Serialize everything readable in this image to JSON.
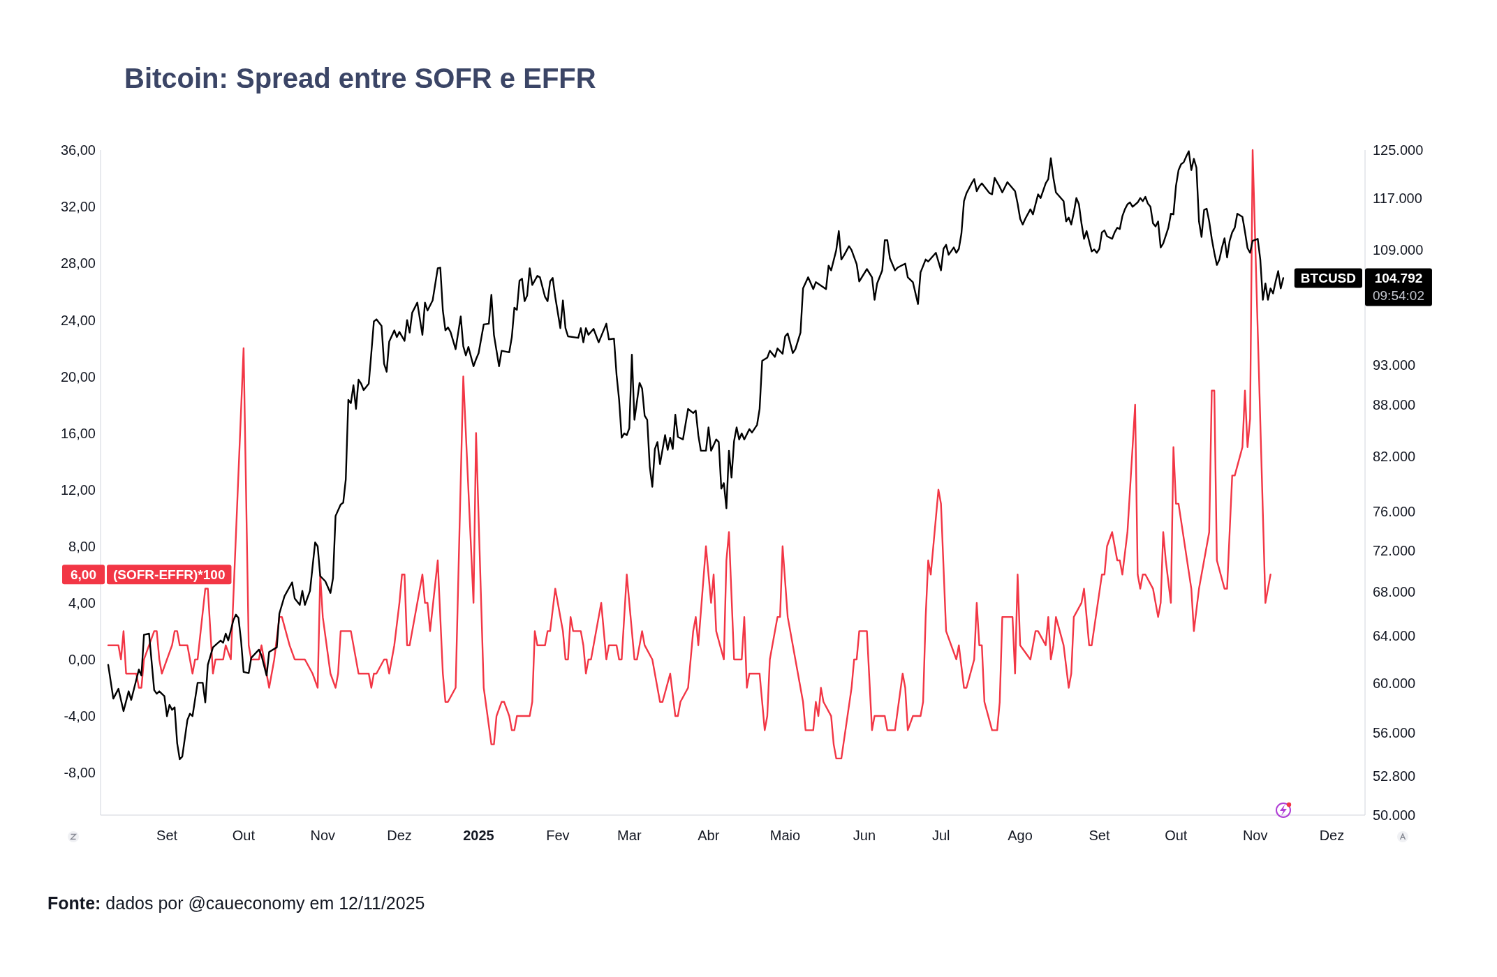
{
  "chart_data": {
    "type": "line",
    "title": "Bitcoin: Spread entre SOFR e EFFR",
    "annotations": [
      "Fonte: dados por @caueconomy em 12/11/2025",
      "09:54:02"
    ],
    "xlim": [
      "2024-08-06",
      "2025-12-14"
    ],
    "xticks": [
      {
        "value": "2024-09-01",
        "label": "Set"
      },
      {
        "value": "2024-10-01",
        "label": "Out"
      },
      {
        "value": "2024-11-01",
        "label": "Nov"
      },
      {
        "value": "2024-12-01",
        "label": "Dez"
      },
      {
        "value": "2025-01-01",
        "label": "2025"
      },
      {
        "value": "2025-02-01",
        "label": "Fev"
      },
      {
        "value": "2025-03-01",
        "label": "Mar"
      },
      {
        "value": "2025-04-01",
        "label": "Abr"
      },
      {
        "value": "2025-05-01",
        "label": "Maio"
      },
      {
        "value": "2025-06-01",
        "label": "Jun"
      },
      {
        "value": "2025-07-01",
        "label": "Jul"
      },
      {
        "value": "2025-08-01",
        "label": "Ago"
      },
      {
        "value": "2025-09-01",
        "label": "Set"
      },
      {
        "value": "2025-10-01",
        "label": "Out"
      },
      {
        "value": "2025-11-01",
        "label": "Nov"
      },
      {
        "value": "2025-12-01",
        "label": "Dez"
      }
    ],
    "ylim": [
      -11,
      36
    ],
    "yticks": [
      {
        "value": -8,
        "label": "-8,00"
      },
      {
        "value": -4,
        "label": "-4,00"
      },
      {
        "value": 0,
        "label": "0,00"
      },
      {
        "value": 4,
        "label": "4,00"
      },
      {
        "value": 6,
        "label": "6,00"
      },
      {
        "value": 8,
        "label": "8,00"
      },
      {
        "value": 12,
        "label": "12,00"
      },
      {
        "value": 16,
        "label": "16,00"
      },
      {
        "value": 20,
        "label": "20,00"
      },
      {
        "value": 24,
        "label": "24,00"
      },
      {
        "value": 28,
        "label": "28,00"
      },
      {
        "value": 32,
        "label": "32,00"
      },
      {
        "value": 36,
        "label": "36,00"
      }
    ],
    "y2lim": [
      50000,
      125000
    ],
    "y2ticks": [
      {
        "value": 50000,
        "label": "50.000"
      },
      {
        "value": 52800,
        "label": "52.800"
      },
      {
        "value": 56000,
        "label": "56.000"
      },
      {
        "value": 60000,
        "label": "60.000"
      },
      {
        "value": 64000,
        "label": "64.000"
      },
      {
        "value": 68000,
        "label": "68.000"
      },
      {
        "value": 72000,
        "label": "72.000"
      },
      {
        "value": 76000,
        "label": "76.000"
      },
      {
        "value": 82000,
        "label": "82.000"
      },
      {
        "value": 88000,
        "label": "88.000"
      },
      {
        "value": 93000,
        "label": "93.000"
      },
      {
        "value": 104792,
        "label": "104.792"
      },
      {
        "value": 109000,
        "label": "109.000"
      },
      {
        "value": 117000,
        "label": "117.000"
      },
      {
        "value": 125000,
        "label": "125.000"
      }
    ],
    "log": "y2",
    "series": [
      {
        "name": "(SOFR-EFFR)*100",
        "color": "#f23645",
        "x": [
          "2024-08-09",
          "2024-08-13",
          "2024-08-14",
          "2024-08-15",
          "2024-08-16",
          "2024-08-20",
          "2024-08-21",
          "2024-08-22",
          "2024-08-23",
          "2024-08-27",
          "2024-08-28",
          "2024-08-29",
          "2024-08-30",
          "2024-09-03",
          "2024-09-04",
          "2024-09-05",
          "2024-09-06",
          "2024-09-09",
          "2024-09-11",
          "2024-09-12",
          "2024-09-13",
          "2024-09-16",
          "2024-09-17",
          "2024-09-19",
          "2024-09-20",
          "2024-09-23",
          "2024-09-24",
          "2024-09-26",
          "2024-10-01",
          "2024-10-03",
          "2024-10-04",
          "2024-10-07",
          "2024-10-08",
          "2024-10-11",
          "2024-10-13",
          "2024-10-15",
          "2024-10-16",
          "2024-10-19",
          "2024-10-21",
          "2024-10-25",
          "2024-10-28",
          "2024-10-30",
          "2024-10-31",
          "2024-11-01",
          "2024-11-04",
          "2024-11-06",
          "2024-11-07",
          "2024-11-08",
          "2024-11-12",
          "2024-11-15",
          "2024-11-19",
          "2024-11-20",
          "2024-11-21",
          "2024-11-22",
          "2024-11-25",
          "2024-11-26",
          "2024-11-27",
          "2024-11-29",
          "2024-12-01",
          "2024-12-02",
          "2024-12-03",
          "2024-12-04",
          "2024-12-05",
          "2024-12-08",
          "2024-12-10",
          "2024-12-11",
          "2024-12-12",
          "2024-12-13",
          "2024-12-16",
          "2024-12-18",
          "2024-12-19",
          "2024-12-20",
          "2024-12-23",
          "2024-12-26",
          "2024-12-30",
          "2024-12-31",
          "2025-01-03",
          "2025-01-06",
          "2025-01-07",
          "2025-01-08",
          "2025-01-10",
          "2025-01-11",
          "2025-01-13",
          "2025-01-14",
          "2025-01-15",
          "2025-01-16",
          "2025-01-21",
          "2025-01-22",
          "2025-01-23",
          "2025-01-24",
          "2025-01-27",
          "2025-01-28",
          "2025-01-29",
          "2025-01-31",
          "2025-02-03",
          "2025-02-04",
          "2025-02-05",
          "2025-02-06",
          "2025-02-07",
          "2025-02-10",
          "2025-02-11",
          "2025-02-12",
          "2025-02-13",
          "2025-02-14",
          "2025-02-18",
          "2025-02-20",
          "2025-02-21",
          "2025-02-24",
          "2025-02-25",
          "2025-02-26",
          "2025-02-28",
          "2025-03-03",
          "2025-03-04",
          "2025-03-06",
          "2025-03-07",
          "2025-03-10",
          "2025-03-13",
          "2025-03-14",
          "2025-03-17",
          "2025-03-19",
          "2025-03-20",
          "2025-03-21",
          "2025-03-24",
          "2025-03-26",
          "2025-03-27",
          "2025-03-28",
          "2025-03-31",
          "2025-04-02",
          "2025-04-03",
          "2025-04-04",
          "2025-04-07",
          "2025-04-08",
          "2025-04-09",
          "2025-04-11",
          "2025-04-14",
          "2025-04-15",
          "2025-04-16",
          "2025-04-17",
          "2025-04-21",
          "2025-04-23",
          "2025-04-24",
          "2025-04-25",
          "2025-04-28",
          "2025-04-29",
          "2025-04-30",
          "2025-05-02",
          "2025-05-06",
          "2025-05-08",
          "2025-05-09",
          "2025-05-12",
          "2025-05-13",
          "2025-05-14",
          "2025-05-15",
          "2025-05-16",
          "2025-05-19",
          "2025-05-20",
          "2025-05-21",
          "2025-05-23",
          "2025-05-27",
          "2025-05-28",
          "2025-05-29",
          "2025-05-30",
          "2025-06-02",
          "2025-06-04",
          "2025-06-05",
          "2025-06-09",
          "2025-06-10",
          "2025-06-13",
          "2025-06-16",
          "2025-06-17",
          "2025-06-18",
          "2025-06-20",
          "2025-06-23",
          "2025-06-24",
          "2025-06-25",
          "2025-06-26",
          "2025-06-27",
          "2025-06-30",
          "2025-07-01",
          "2025-07-03",
          "2025-07-07",
          "2025-07-08",
          "2025-07-10",
          "2025-07-11",
          "2025-07-14",
          "2025-07-15",
          "2025-07-16",
          "2025-07-17",
          "2025-07-18",
          "2025-07-21",
          "2025-07-23",
          "2025-07-24",
          "2025-07-25",
          "2025-07-29",
          "2025-07-30",
          "2025-07-31",
          "2025-08-01",
          "2025-08-05",
          "2025-08-06",
          "2025-08-07",
          "2025-08-08",
          "2025-08-11",
          "2025-08-12",
          "2025-08-13",
          "2025-08-14",
          "2025-08-15",
          "2025-08-18",
          "2025-08-20",
          "2025-08-21",
          "2025-08-22",
          "2025-08-25",
          "2025-08-26",
          "2025-08-28",
          "2025-08-29",
          "2025-09-02",
          "2025-09-03",
          "2025-09-04",
          "2025-09-06",
          "2025-09-08",
          "2025-09-09",
          "2025-09-10",
          "2025-09-12",
          "2025-09-15",
          "2025-09-16",
          "2025-09-17",
          "2025-09-18",
          "2025-09-19",
          "2025-09-22",
          "2025-09-24",
          "2025-09-25",
          "2025-09-26",
          "2025-09-27",
          "2025-09-29",
          "2025-09-30",
          "2025-10-01",
          "2025-10-02",
          "2025-10-07",
          "2025-10-08",
          "2025-10-10",
          "2025-10-14",
          "2025-10-15",
          "2025-10-16",
          "2025-10-17",
          "2025-10-20",
          "2025-10-21",
          "2025-10-23",
          "2025-10-24",
          "2025-10-27",
          "2025-10-28",
          "2025-10-29",
          "2025-10-30",
          "2025-10-31",
          "2025-11-05",
          "2025-11-07"
        ],
        "values": [
          1,
          1,
          0,
          2,
          -1,
          -1,
          -2,
          -2,
          0,
          2,
          2,
          0,
          -1,
          1,
          2,
          2,
          1,
          1,
          -1,
          0,
          0,
          5,
          5,
          -1,
          0,
          0,
          1,
          0,
          22,
          1,
          0,
          0,
          1,
          -2,
          0,
          3,
          3,
          1,
          0,
          0,
          -1,
          -2,
          6,
          3,
          -1,
          -2,
          -1,
          2,
          2,
          -1,
          -1,
          -2,
          -1,
          -1,
          0,
          0,
          -1,
          1,
          4,
          6,
          6,
          1,
          1,
          4,
          6,
          4,
          4,
          2,
          7,
          -1,
          -3,
          -3,
          -2,
          20,
          4,
          16,
          -2,
          -6,
          -6,
          -4,
          -3,
          -3,
          -4,
          -5,
          -5,
          -4,
          -4,
          -3,
          2,
          1,
          1,
          2,
          2,
          5,
          2,
          0,
          0,
          3,
          2,
          2,
          1,
          -1,
          0,
          0,
          4,
          0,
          1,
          1,
          0,
          0,
          6,
          0,
          0,
          2,
          1,
          0,
          -3,
          -3,
          -1,
          -4,
          -4,
          -3,
          -2,
          2,
          3,
          1,
          8,
          4,
          6,
          2,
          0,
          7,
          9,
          0,
          0,
          3,
          -2,
          -1,
          -1,
          -5,
          -4,
          0,
          3,
          3,
          8,
          3,
          -1,
          -3,
          -5,
          -5,
          -3,
          -4,
          -2,
          -3,
          -4,
          -6,
          -7,
          -7,
          -2,
          0,
          0,
          2,
          2,
          -5,
          -4,
          -4,
          -5,
          -5,
          -1,
          -2,
          -5,
          -4,
          -4,
          -3,
          3,
          7,
          6,
          12,
          11,
          2,
          0,
          1,
          -2,
          -2,
          0,
          4,
          1,
          1,
          -3,
          -5,
          -5,
          -3,
          3,
          3,
          -1,
          6,
          1,
          0,
          1,
          2,
          2,
          1,
          3,
          0,
          1,
          3,
          1,
          -2,
          -1,
          3,
          4,
          5,
          1,
          1,
          6,
          6,
          8,
          9,
          7,
          7,
          6,
          9,
          18,
          6,
          5,
          6,
          6,
          5,
          3,
          4,
          9,
          7,
          4,
          15,
          11,
          11,
          5,
          2,
          5,
          9,
          19,
          19,
          7,
          5,
          5,
          13,
          13,
          15,
          19,
          15,
          17,
          36,
          4,
          6
        ]
      },
      {
        "name": "BTCUSD",
        "color": "#000000",
        "axis": "y2",
        "x": [
          "2024-08-09",
          "2024-08-11",
          "2024-08-13",
          "2024-08-15",
          "2024-08-17",
          "2024-08-18",
          "2024-08-21",
          "2024-08-22",
          "2024-08-23",
          "2024-08-25",
          "2024-08-27",
          "2024-08-28",
          "2024-08-29",
          "2024-08-31",
          "2024-09-01",
          "2024-09-02",
          "2024-09-03",
          "2024-09-04",
          "2024-09-05",
          "2024-09-06",
          "2024-09-07",
          "2024-09-09",
          "2024-09-10",
          "2024-09-11",
          "2024-09-13",
          "2024-09-15",
          "2024-09-16",
          "2024-09-17",
          "2024-09-19",
          "2024-09-22",
          "2024-09-23",
          "2024-09-24",
          "2024-09-25",
          "2024-09-27",
          "2024-09-28",
          "2024-09-29",
          "2024-09-30",
          "2024-10-01",
          "2024-10-03",
          "2024-10-04",
          "2024-10-07",
          "2024-10-08",
          "2024-10-10",
          "2024-10-11",
          "2024-10-14",
          "2024-10-15",
          "2024-10-17",
          "2024-10-20",
          "2024-10-21",
          "2024-10-23",
          "2024-10-24",
          "2024-10-25",
          "2024-10-27",
          "2024-10-29",
          "2024-10-30",
          "2024-10-31",
          "2024-11-02",
          "2024-11-04",
          "2024-11-05",
          "2024-11-06",
          "2024-11-08",
          "2024-11-09",
          "2024-11-10",
          "2024-11-11",
          "2024-11-12",
          "2024-11-13",
          "2024-11-14",
          "2024-11-15",
          "2024-11-16",
          "2024-11-17",
          "2024-11-19",
          "2024-11-20",
          "2024-11-21",
          "2024-11-22",
          "2024-11-24",
          "2024-11-25",
          "2024-11-26",
          "2024-11-27",
          "2024-11-29",
          "2024-11-30",
          "2024-12-01",
          "2024-12-03",
          "2024-12-04",
          "2024-12-05",
          "2024-12-06",
          "2024-12-08",
          "2024-12-10",
          "2024-12-11",
          "2024-12-12",
          "2024-12-14",
          "2024-12-16",
          "2024-12-17",
          "2024-12-18",
          "2024-12-19",
          "2024-12-20",
          "2024-12-21",
          "2024-12-23",
          "2024-12-25",
          "2024-12-26",
          "2024-12-27",
          "2024-12-28",
          "2024-12-30",
          "2024-12-31",
          "2025-01-01",
          "2025-01-03",
          "2025-01-05",
          "2025-01-06",
          "2025-01-07",
          "2025-01-09",
          "2025-01-10",
          "2025-01-13",
          "2025-01-14",
          "2025-01-15",
          "2025-01-16",
          "2025-01-17",
          "2025-01-18",
          "2025-01-19",
          "2025-01-20",
          "2025-01-21",
          "2025-01-22",
          "2025-01-24",
          "2025-01-25",
          "2025-01-27",
          "2025-01-28",
          "2025-01-29",
          "2025-01-30",
          "2025-01-31",
          "2025-02-02",
          "2025-02-03",
          "2025-02-04",
          "2025-02-05",
          "2025-02-09",
          "2025-02-10",
          "2025-02-11",
          "2025-02-12",
          "2025-02-13",
          "2025-02-15",
          "2025-02-17",
          "2025-02-20",
          "2025-02-21",
          "2025-02-23",
          "2025-02-24",
          "2025-02-25",
          "2025-02-26",
          "2025-02-27",
          "2025-02-28",
          "2025-03-01",
          "2025-03-02",
          "2025-03-03",
          "2025-03-05",
          "2025-03-06",
          "2025-03-07",
          "2025-03-08",
          "2025-03-09",
          "2025-03-10",
          "2025-03-11",
          "2025-03-12",
          "2025-03-13",
          "2025-03-15",
          "2025-03-16",
          "2025-03-17",
          "2025-03-18",
          "2025-03-19",
          "2025-03-20",
          "2025-03-22",
          "2025-03-24",
          "2025-03-26",
          "2025-03-27",
          "2025-03-28",
          "2025-03-29",
          "2025-03-31",
          "2025-04-01",
          "2025-04-02",
          "2025-04-04",
          "2025-04-05",
          "2025-04-06",
          "2025-04-07",
          "2025-04-08",
          "2025-04-09",
          "2025-04-10",
          "2025-04-11",
          "2025-04-12",
          "2025-04-13",
          "2025-04-14",
          "2025-04-15",
          "2025-04-17",
          "2025-04-18",
          "2025-04-20",
          "2025-04-21",
          "2025-04-22",
          "2025-04-24",
          "2025-04-25",
          "2025-04-27",
          "2025-04-28",
          "2025-04-30",
          "2025-05-01",
          "2025-05-02",
          "2025-05-04",
          "2025-05-05",
          "2025-05-07",
          "2025-05-08",
          "2025-05-10",
          "2025-05-12",
          "2025-05-13",
          "2025-05-17",
          "2025-05-18",
          "2025-05-19",
          "2025-05-21",
          "2025-05-22",
          "2025-05-23",
          "2025-05-24",
          "2025-05-26",
          "2025-05-27",
          "2025-05-29",
          "2025-05-30",
          "2025-06-02",
          "2025-06-04",
          "2025-06-05",
          "2025-06-06",
          "2025-06-08",
          "2025-06-09",
          "2025-06-10",
          "2025-06-11",
          "2025-06-13",
          "2025-06-14",
          "2025-06-17",
          "2025-06-18",
          "2025-06-20",
          "2025-06-22",
          "2025-06-23",
          "2025-06-25",
          "2025-06-26",
          "2025-06-29",
          "2025-06-30",
          "2025-07-01",
          "2025-07-02",
          "2025-07-03",
          "2025-07-04",
          "2025-07-06",
          "2025-07-07",
          "2025-07-08",
          "2025-07-09",
          "2025-07-10",
          "2025-07-11",
          "2025-07-13",
          "2025-07-14",
          "2025-07-15",
          "2025-07-16",
          "2025-07-17",
          "2025-07-20",
          "2025-07-21",
          "2025-07-22",
          "2025-07-24",
          "2025-07-25",
          "2025-07-27",
          "2025-07-30",
          "2025-07-31",
          "2025-08-01",
          "2025-08-02",
          "2025-08-03",
          "2025-08-05",
          "2025-08-06",
          "2025-08-08",
          "2025-08-09",
          "2025-08-11",
          "2025-08-12",
          "2025-08-13",
          "2025-08-14",
          "2025-08-15",
          "2025-08-18",
          "2025-08-19",
          "2025-08-20",
          "2025-08-21",
          "2025-08-22",
          "2025-08-23",
          "2025-08-24",
          "2025-08-25",
          "2025-08-26",
          "2025-08-27",
          "2025-08-29",
          "2025-08-30",
          "2025-08-31",
          "2025-09-01",
          "2025-09-02",
          "2025-09-03",
          "2025-09-04",
          "2025-09-06",
          "2025-09-07",
          "2025-09-08",
          "2025-09-09",
          "2025-09-10",
          "2025-09-11",
          "2025-09-12",
          "2025-09-13",
          "2025-09-14",
          "2025-09-16",
          "2025-09-17",
          "2025-09-18",
          "2025-09-19",
          "2025-09-20",
          "2025-09-21",
          "2025-09-22",
          "2025-09-23",
          "2025-09-24",
          "2025-09-25",
          "2025-09-26",
          "2025-09-28",
          "2025-09-29",
          "2025-09-30",
          "2025-10-01",
          "2025-10-02",
          "2025-10-03",
          "2025-10-04",
          "2025-10-05",
          "2025-10-06",
          "2025-10-07",
          "2025-10-08",
          "2025-10-09",
          "2025-10-10",
          "2025-10-11",
          "2025-10-12",
          "2025-10-13",
          "2025-10-14",
          "2025-10-15",
          "2025-10-16",
          "2025-10-17",
          "2025-10-18",
          "2025-10-19",
          "2025-10-20",
          "2025-10-21",
          "2025-10-22",
          "2025-10-23",
          "2025-10-24",
          "2025-10-25",
          "2025-10-27",
          "2025-10-28",
          "2025-10-29",
          "2025-10-30",
          "2025-10-31",
          "2025-11-02",
          "2025-11-03",
          "2025-11-04",
          "2025-11-05",
          "2025-11-06",
          "2025-11-07",
          "2025-11-08",
          "2025-11-09",
          "2025-11-10",
          "2025-11-11",
          "2025-11-12"
        ],
        "values": [
          61500,
          58700,
          59500,
          57700,
          59300,
          58600,
          61100,
          60600,
          64100,
          64200,
          59400,
          59100,
          59300,
          58900,
          57300,
          58200,
          57800,
          58000,
          55200,
          54000,
          54200,
          57000,
          57500,
          57300,
          60000,
          60000,
          58400,
          61500,
          63000,
          63600,
          63400,
          64200,
          63600,
          65400,
          65900,
          65600,
          63600,
          60900,
          60800,
          62100,
          62800,
          62300,
          60600,
          62600,
          63000,
          66000,
          67600,
          68900,
          67400,
          66800,
          68100,
          66800,
          68100,
          72800,
          72400,
          69500,
          69000,
          67900,
          69300,
          75500,
          76700,
          76900,
          79400,
          88600,
          88200,
          90400,
          87500,
          91100,
          90600,
          89800,
          90600,
          94500,
          98700,
          99000,
          98100,
          93100,
          92100,
          96000,
          97500,
          96600,
          97300,
          96100,
          98900,
          97200,
          99900,
          101300,
          96900,
          101300,
          100200,
          101600,
          106200,
          106300,
          100200,
          97500,
          97900,
          97300,
          95000,
          99400,
          95400,
          94200,
          95300,
          92800,
          93700,
          94500,
          98300,
          98400,
          102400,
          96900,
          92800,
          94800,
          94600,
          96600,
          100600,
          100300,
          104400,
          104700,
          101500,
          102300,
          106200,
          103800,
          105100,
          104900,
          102100,
          101500,
          104300,
          104800,
          102100,
          97800,
          101600,
          97800,
          96700,
          96500,
          97800,
          95900,
          97800,
          96900,
          97700,
          95900,
          98400,
          96300,
          96400,
          91700,
          88600,
          84100,
          84600,
          84400,
          85200,
          94300,
          86200,
          90700,
          90000,
          86700,
          86200,
          80800,
          78600,
          82800,
          83600,
          81100,
          84400,
          82700,
          84100,
          82800,
          86800,
          84200,
          83900,
          87500,
          87000,
          87300,
          84400,
          82600,
          82600,
          85300,
          82600,
          83900,
          83600,
          78400,
          79000,
          76300,
          82600,
          79600,
          83700,
          85300,
          83900,
          84600,
          83900,
          85100,
          84700,
          85600,
          87500,
          93500,
          93900,
          94800,
          94000,
          95100,
          94400,
          96700,
          97100,
          94500,
          95000,
          97200,
          103300,
          104900,
          103200,
          104200,
          103200,
          106600,
          105900,
          108900,
          111800,
          107500,
          108100,
          109500,
          108900,
          106800,
          104300,
          106100,
          104900,
          101700,
          104000,
          105900,
          110400,
          110400,
          107700,
          105900,
          106300,
          106900,
          104900,
          104200,
          101100,
          105600,
          107500,
          107200,
          108500,
          107200,
          105900,
          109100,
          109700,
          108200,
          109300,
          108500,
          109100,
          111400,
          116500,
          117800,
          119400,
          120100,
          118100,
          118900,
          119400,
          117800,
          117600,
          120300,
          118800,
          117900,
          119600,
          118100,
          116100,
          113700,
          112800,
          113700,
          115200,
          114400,
          117600,
          117000,
          119400,
          120100,
          123600,
          120300,
          117900,
          116500,
          113300,
          113900,
          112800,
          114700,
          117000,
          116000,
          113000,
          110600,
          111800,
          108700,
          109000,
          108500,
          109100,
          111600,
          111900,
          111000,
          110600,
          111600,
          112300,
          112100,
          114100,
          115200,
          116000,
          116300,
          115600,
          116300,
          117000,
          116500,
          117200,
          116100,
          115600,
          113000,
          112500,
          113300,
          109300,
          109900,
          112300,
          114500,
          114400,
          119000,
          121600,
          122600,
          122900,
          123900,
          124800,
          121600,
          123500,
          122000,
          113300,
          110900,
          115100,
          115300,
          113300,
          110600,
          108500,
          106700,
          107500,
          109300,
          110700,
          107800,
          110300,
          111600,
          112300,
          114500,
          114000,
          111700,
          109200,
          108500,
          110300,
          110600,
          107500,
          101700,
          104000,
          101700,
          103300,
          102600,
          104300,
          105800,
          103300,
          104792
        ]
      }
    ]
  }
}
